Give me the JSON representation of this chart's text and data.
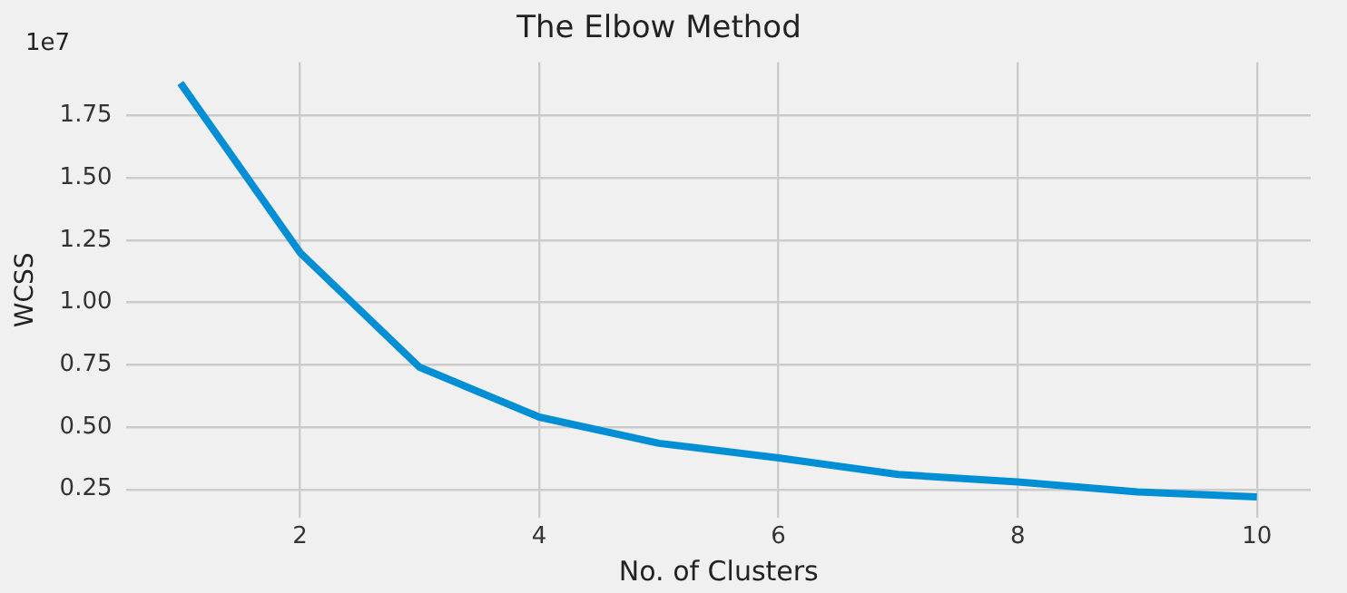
{
  "chart_data": {
    "type": "line",
    "title": "The Elbow Method",
    "xlabel": "No. of Clusters",
    "ylabel": "WCSS",
    "annotations": [
      "1e7"
    ],
    "x": [
      1,
      2,
      3,
      4,
      5,
      6,
      7,
      8,
      9,
      10
    ],
    "series": [
      {
        "color": "#008fd5",
        "values": [
          1.88,
          1.2,
          0.74,
          0.54,
          0.435,
          0.376,
          0.31,
          0.28,
          0.24,
          0.22
        ]
      }
    ],
    "xlim": [
      0.55,
      10.45
    ],
    "xticks": [
      2,
      4,
      6,
      8,
      10
    ],
    "ylim": [
      0.137,
      1.963
    ],
    "yticks": [
      0.25,
      {
        "value": 0.5,
        "label": "0.50"
      },
      0.75,
      {
        "value": 1,
        "label": "1.00"
      },
      1.25,
      {
        "value": 1.5,
        "label": "1.50"
      },
      1.75
    ],
    "grid": true,
    "legend": false,
    "marker": "none",
    "line_style": "solid"
  }
}
